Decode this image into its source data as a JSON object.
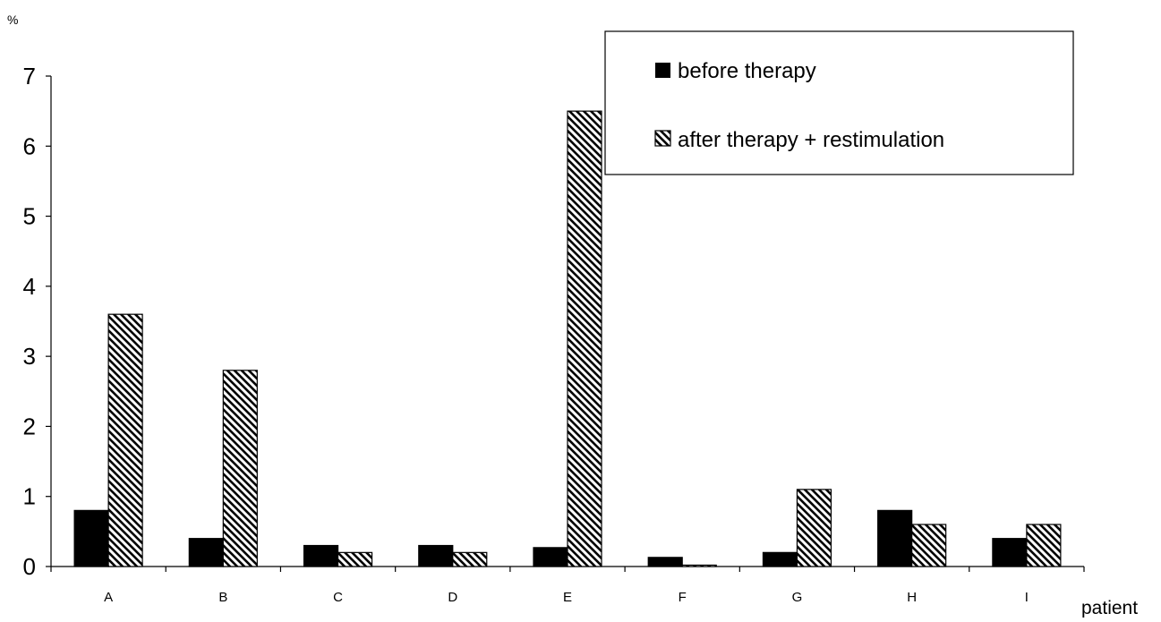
{
  "chart_data": {
    "type": "bar",
    "ylabel": "%",
    "xlabel": "patient",
    "ylim": [
      0,
      7
    ],
    "yticks": [
      "0",
      "1",
      "2",
      "3",
      "4",
      "5",
      "6",
      "7"
    ],
    "categories": [
      "A",
      "B",
      "C",
      "D",
      "E",
      "F",
      "G",
      "H",
      "I"
    ],
    "series": [
      {
        "name": "before therapy",
        "fill": "solid",
        "color": "#000000",
        "values": [
          0.8,
          0.4,
          0.3,
          0.3,
          0.27,
          0.13,
          0.2,
          0.8,
          0.4
        ]
      },
      {
        "name": "after therapy + restimulation",
        "fill": "diagonal-hatch",
        "color": "#000000",
        "values": [
          3.6,
          2.8,
          0.2,
          0.2,
          6.5,
          0.02,
          1.1,
          0.6,
          0.6
        ]
      }
    ],
    "grid": false,
    "legend": "top-right"
  }
}
